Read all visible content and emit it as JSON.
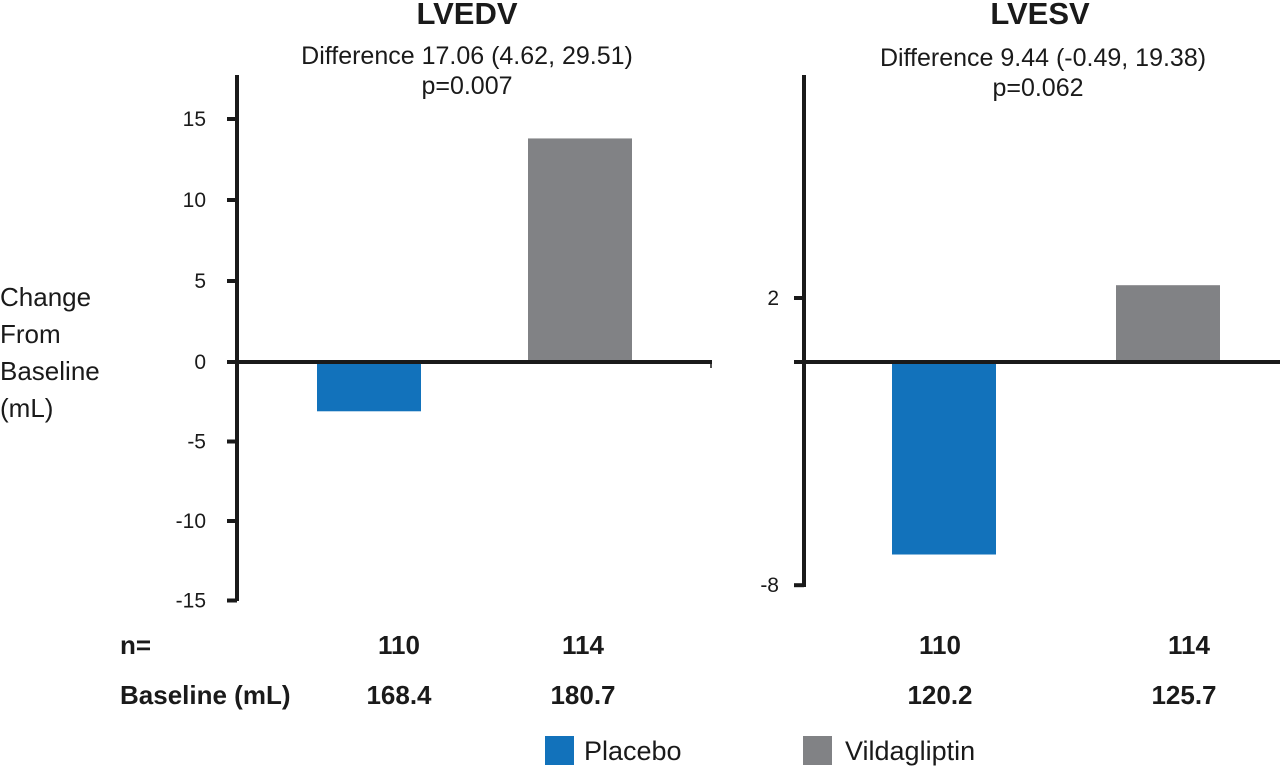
{
  "chart_data": [
    {
      "type": "bar",
      "title": "LVEDV",
      "subtitle": [
        "Difference 17.06 (4.62, 29.51)",
        "p=0.007"
      ],
      "ylabel": [
        "Change",
        "From",
        "Baseline",
        "(mL)"
      ],
      "xlabel": "",
      "categories": [
        "Placebo",
        "Vildagliptin"
      ],
      "values": [
        -3.1,
        13.8
      ],
      "ylim": [
        -15,
        15
      ],
      "yticks": [
        15,
        10,
        5,
        0,
        -5,
        -10,
        -15
      ],
      "ytick_labels": [
        "15",
        "10",
        "5",
        "0",
        "-5",
        "-10",
        "-15"
      ],
      "n": [
        "110",
        "114"
      ],
      "baseline_ml": [
        "168.4",
        "180.7"
      ],
      "grid": false
    },
    {
      "type": "bar",
      "title": "LVESV",
      "subtitle": [
        "Difference 9.44 (-0.49, 19.38)",
        "p=0.062"
      ],
      "ylabel": [],
      "xlabel": "",
      "categories": [
        "Placebo",
        "Vildagliptin"
      ],
      "values": [
        -6.9,
        2.4
      ],
      "ylim": [
        -8,
        2
      ],
      "yticks": [
        2,
        0,
        -8
      ],
      "ytick_labels": [
        "2",
        "",
        "-8"
      ],
      "n": [
        "110",
        "114"
      ],
      "baseline_ml": [
        "120.2",
        "125.7"
      ],
      "grid": false
    }
  ],
  "table": {
    "n_label": "n=",
    "baseline_label": "Baseline (mL)"
  },
  "legend": {
    "position": "bottom-center",
    "items": [
      {
        "label": "Placebo",
        "color": "#1272bb"
      },
      {
        "label": "Vildagliptin",
        "color": "#818285"
      }
    ]
  },
  "colors": {
    "placebo": "#1272bb",
    "vildagliptin": "#818285",
    "axis": "#1a1a1a"
  }
}
